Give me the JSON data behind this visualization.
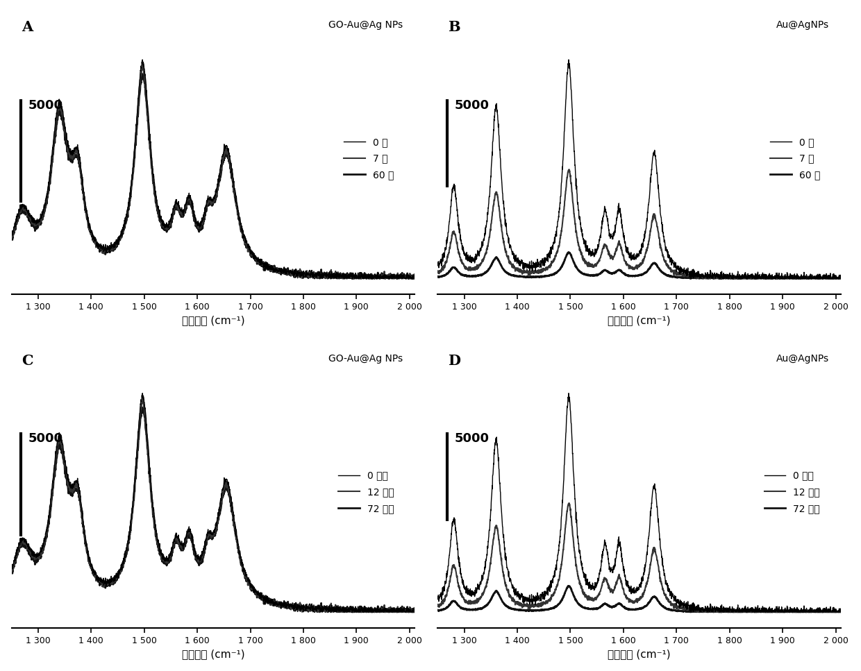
{
  "panels": [
    {
      "label": "A",
      "subtitle": "GO-Au@Ag NPs",
      "legend_labels": [
        "0 天",
        "7 天",
        "60 天"
      ],
      "type": "A"
    },
    {
      "label": "B",
      "subtitle": "Au@AgNPs",
      "legend_labels": [
        "0 天",
        "7 天",
        "60 天"
      ],
      "type": "B"
    },
    {
      "label": "C",
      "subtitle": "GO-Au@Ag NPs",
      "legend_labels": [
        "0 小时",
        "12 小时",
        "72 小时"
      ],
      "type": "C"
    },
    {
      "label": "D",
      "subtitle": "Au@AgNPs",
      "legend_labels": [
        "0 小时",
        "12 小时",
        "72 小时"
      ],
      "type": "D"
    }
  ],
  "xlabel": "拉曼位移 (cm⁻¹)",
  "xmin": 1250,
  "xmax": 2010,
  "scalebar_value": "5000",
  "background_color": "#ffffff",
  "tick_label_size": 9,
  "axis_label_size": 11,
  "legend_fontsize": 10,
  "panel_label_fontsize": 15,
  "subtitle_fontsize": 10,
  "scalebar_fontsize": 13
}
